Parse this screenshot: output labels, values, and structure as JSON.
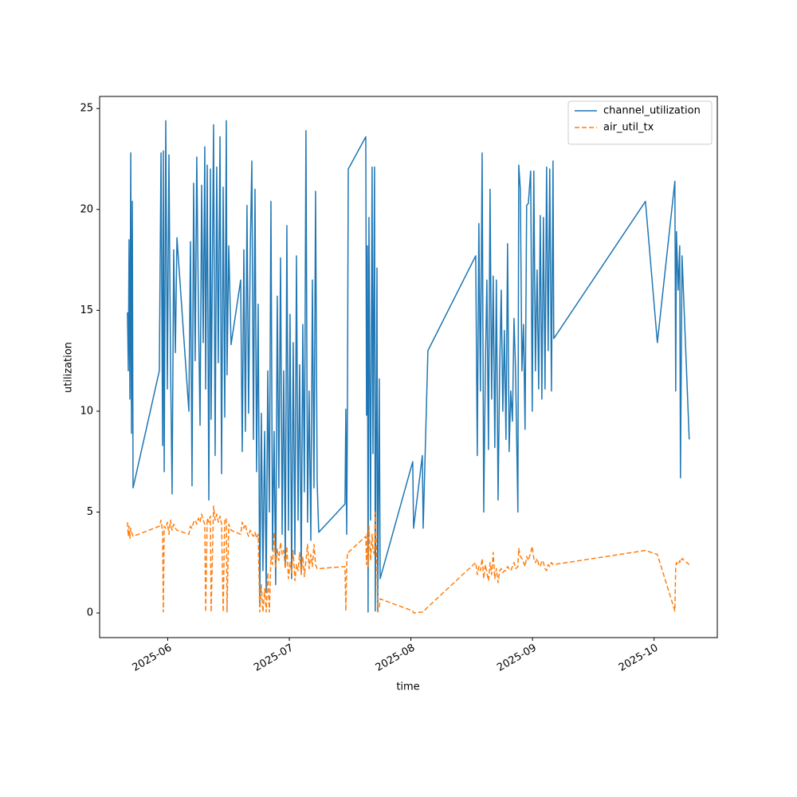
{
  "chart_data": {
    "type": "line",
    "xlabel": "time",
    "ylabel": "utilization",
    "x": [
      5.669,
      5.676,
      5.682,
      5.689,
      5.696,
      5.702,
      5.709,
      5.715,
      5.931,
      5.945,
      5.958,
      5.964,
      5.971,
      5.984,
      5.997,
      6.01,
      6.023,
      6.036,
      6.049,
      6.063,
      6.076,
      6.174,
      6.187,
      6.2,
      6.213,
      6.226,
      6.239,
      6.253,
      6.266,
      6.279,
      6.292,
      6.305,
      6.312,
      6.325,
      6.338,
      6.351,
      6.357,
      6.377,
      6.39,
      6.403,
      6.416,
      6.43,
      6.443,
      6.456,
      6.469,
      6.482,
      6.488,
      6.502,
      6.521,
      6.6,
      6.613,
      6.626,
      6.639,
      6.652,
      6.665,
      6.679,
      6.692,
      6.705,
      6.718,
      6.731,
      6.744,
      6.757,
      6.77,
      6.783,
      6.797,
      6.81,
      6.823,
      6.836,
      6.849,
      6.862,
      6.875,
      6.888,
      6.901,
      6.914,
      6.928,
      6.941,
      6.954,
      6.967,
      6.98,
      6.993,
      7.006,
      7.019,
      7.032,
      7.046,
      7.059,
      7.072,
      7.085,
      7.098,
      7.111,
      7.124,
      7.137,
      7.15,
      7.163,
      7.177,
      7.19,
      7.203,
      7.216,
      7.229,
      7.242,
      7.458,
      7.465,
      7.472,
      7.478,
      7.485,
      7.629,
      7.635,
      7.642,
      7.648,
      7.655,
      7.668,
      7.681,
      7.688,
      7.701,
      7.707,
      7.721,
      7.727,
      7.74,
      7.747,
      8.015,
      8.022,
      8.094,
      8.101,
      8.14,
      8.533,
      8.546,
      8.559,
      8.572,
      8.586,
      8.599,
      8.612,
      8.625,
      8.638,
      8.651,
      8.664,
      8.677,
      8.69,
      8.703,
      8.717,
      8.73,
      8.743,
      8.756,
      8.769,
      8.782,
      8.795,
      8.808,
      8.821,
      8.835,
      8.848,
      8.861,
      8.88,
      8.887,
      8.9,
      8.913,
      8.926,
      8.939,
      8.952,
      8.966,
      8.985,
      8.998,
      9.011,
      9.024,
      9.038,
      9.051,
      9.064,
      9.077,
      9.09,
      9.103,
      9.116,
      9.129,
      9.142,
      9.156,
      9.169,
      9.175,
      9.929,
      10.027,
      10.171,
      10.178,
      10.184,
      10.198,
      10.211,
      10.217,
      10.23,
      10.289
    ],
    "series": [
      {
        "name": "channel_utilization",
        "color": "#1f77b4",
        "linestyle": "solid",
        "values": [
          14.9,
          12,
          18.5,
          10.6,
          22.8,
          8.9,
          20.4,
          6.2,
          12.0,
          22.8,
          8.3,
          22.9,
          7.0,
          24.4,
          11.1,
          22.7,
          12.6,
          5.9,
          18.0,
          12.9,
          18.6,
          10.0,
          18.4,
          6.3,
          21.3,
          12.5,
          22.6,
          14.9,
          9.3,
          21.2,
          13.4,
          23.1,
          11.1,
          22.2,
          5.6,
          22.0,
          9.6,
          24.2,
          7.8,
          22.1,
          12.4,
          23.6,
          6.9,
          21.1,
          9.7,
          24.4,
          11.8,
          18.2,
          13.3,
          16.5,
          8.0,
          18.0,
          9.0,
          20.2,
          9.9,
          18.0,
          22.4,
          8.6,
          21.0,
          7.0,
          15.3,
          0.5,
          9.9,
          2.1,
          9.0,
          1.0,
          12.0,
          5.0,
          20.4,
          3.1,
          9.0,
          1.4,
          15.7,
          6.2,
          17.6,
          3.9,
          12.0,
          2.3,
          19.2,
          4.1,
          14.8,
          1.7,
          13.4,
          2.9,
          17.7,
          4.6,
          12.3,
          2.0,
          14.3,
          6.0,
          23.9,
          4.5,
          11.0,
          3.6,
          16.5,
          6.2,
          20.9,
          6.5,
          4.0,
          5.4,
          10.1,
          3.9,
          10.2,
          22.0,
          23.6,
          9.8,
          18.2,
          0.05,
          19.6,
          4.6,
          22.1,
          7.9,
          22.1,
          0.1,
          17.1,
          0.05,
          11.6,
          1.7,
          7.5,
          4.2,
          7.8,
          4.2,
          13.0,
          17.7,
          7.8,
          19.3,
          11.0,
          22.8,
          5.0,
          12.0,
          16.5,
          8.1,
          21.0,
          10.6,
          16.7,
          8.2,
          16.5,
          5.6,
          12.0,
          16.0,
          10.0,
          14.0,
          8.6,
          18.3,
          8.0,
          11.0,
          9.5,
          14.6,
          12.0,
          5.0,
          22.2,
          21.0,
          12.0,
          14.3,
          9.1,
          20.2,
          20.3,
          21.9,
          10.0,
          21.9,
          12.0,
          17.0,
          11.1,
          19.7,
          10.6,
          19.6,
          11.1,
          22.1,
          13.0,
          22.0,
          11.0,
          22.4,
          13.6,
          20.4,
          13.4,
          21.4,
          11.0,
          18.9,
          16.0,
          18.2,
          6.7,
          17.7,
          8.6
        ]
      },
      {
        "name": "air_util_tx",
        "color": "#ff7f0e",
        "linestyle": "dashed",
        "values": [
          4.5,
          3.8,
          4.3,
          3.7,
          4.2,
          4.0,
          3.9,
          3.8,
          4.3,
          4.6,
          4.0,
          0.05,
          4.3,
          4.2,
          4.5,
          3.9,
          4.6,
          4.1,
          4.4,
          4.2,
          4.1,
          3.9,
          4.3,
          4.2,
          4.5,
          4.6,
          4.4,
          4.7,
          4.5,
          4.9,
          4.6,
          4.4,
          0.05,
          4.7,
          4.5,
          4.8,
          0.05,
          5.3,
          4.6,
          4.9,
          4.5,
          4.8,
          4.4,
          0.05,
          4.6,
          4.7,
          0.05,
          4.4,
          4.1,
          3.9,
          4.5,
          4.2,
          4.4,
          4.0,
          3.8,
          4.1,
          3.9,
          3.8,
          4.0,
          3.7,
          3.9,
          0.05,
          1.4,
          0.05,
          1.2,
          0.05,
          2.0,
          0.05,
          2.8,
          2.4,
          4.0,
          2.2,
          3.2,
          2.6,
          3.5,
          2.9,
          3.1,
          2.2,
          3.3,
          1.7,
          2.5,
          2.0,
          3.1,
          1.6,
          2.4,
          2.1,
          3.0,
          1.9,
          2.8,
          1.8,
          2.6,
          3.4,
          2.2,
          2.9,
          2.3,
          3.4,
          2.4,
          2.2,
          2.2,
          2.3,
          0.1,
          2.4,
          3.0,
          3.0,
          3.8,
          2.4,
          4.0,
          2.3,
          4.3,
          2.6,
          3.9,
          3.1,
          2.9,
          5.0,
          2.3,
          0.05,
          0.3,
          0.7,
          0.1,
          0.0,
          0.05,
          0.05,
          0.3,
          2.5,
          1.9,
          2.3,
          2.1,
          2.7,
          1.7,
          2.4,
          2.0,
          1.6,
          2.5,
          1.9,
          3.0,
          1.7,
          2.2,
          1.5,
          2.1,
          2.2,
          2.0,
          2.1,
          2.1,
          2.3,
          2.2,
          2.1,
          2.3,
          2.5,
          2.2,
          2.3,
          3.2,
          2.8,
          2.7,
          2.5,
          2.3,
          2.8,
          2.6,
          3.0,
          3.3,
          2.7,
          2.5,
          2.7,
          2.4,
          2.3,
          2.6,
          2.5,
          2.2,
          2.1,
          2.4,
          2.3,
          2.5,
          2.4,
          2.4,
          3.1,
          2.9,
          0.1,
          2.3,
          2.5,
          2.4,
          2.6,
          2.5,
          2.7,
          2.4
        ]
      }
    ],
    "xlim": [
      5.44,
      10.52
    ],
    "xticks": [
      {
        "value": 6,
        "label": "2025-06"
      },
      {
        "value": 7,
        "label": "2025-07"
      },
      {
        "value": 8,
        "label": "2025-08"
      },
      {
        "value": 9,
        "label": "2025-09"
      },
      {
        "value": 10,
        "label": "2025-10"
      }
    ],
    "ylim": [
      -1.22,
      25.6
    ],
    "yticks": [
      0,
      5,
      10,
      15,
      20,
      25
    ],
    "grid": false,
    "legend": "upper right"
  }
}
